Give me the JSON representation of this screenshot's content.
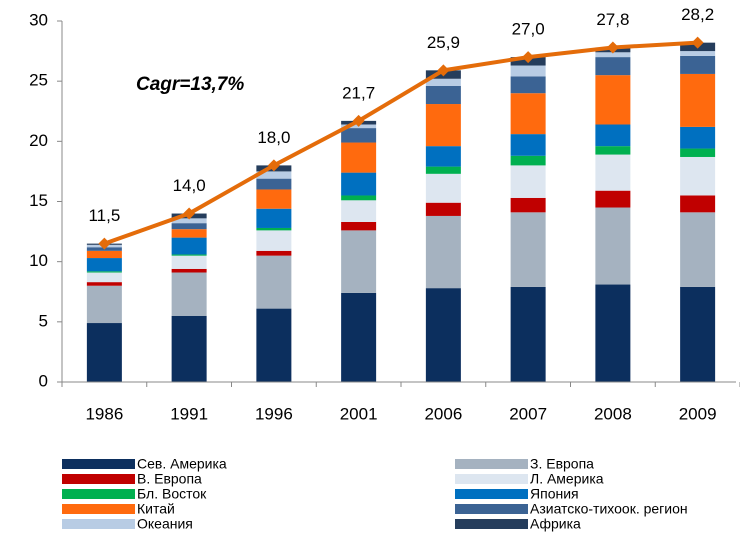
{
  "chart_data": {
    "type": "stacked_bar_line",
    "annotation": "Cagr=13,7%",
    "categories": [
      "1986",
      "1991",
      "1996",
      "2001",
      "2006",
      "2007",
      "2008",
      "2009"
    ],
    "series": [
      {
        "name": "Сев. Америка",
        "color": "#0c2f5e",
        "values": [
          4.9,
          5.5,
          6.1,
          7.4,
          7.8,
          7.9,
          8.1,
          7.9
        ]
      },
      {
        "name": "З. Европа",
        "color": "#a5b2c0",
        "values": [
          3.1,
          3.6,
          4.4,
          5.2,
          6.0,
          6.2,
          6.4,
          6.2
        ]
      },
      {
        "name": "В. Европа",
        "color": "#c00000",
        "values": [
          0.3,
          0.3,
          0.4,
          0.7,
          1.1,
          1.2,
          1.4,
          1.4
        ]
      },
      {
        "name": "Л. Америка",
        "color": "#dde6f0",
        "values": [
          0.8,
          1.1,
          1.7,
          1.8,
          2.4,
          2.7,
          3.0,
          3.2
        ]
      },
      {
        "name": "Бл. Восток",
        "color": "#00b050",
        "values": [
          0.1,
          0.1,
          0.2,
          0.4,
          0.6,
          0.8,
          0.7,
          0.7
        ]
      },
      {
        "name": "Япония",
        "color": "#0070c0",
        "values": [
          1.1,
          1.4,
          1.6,
          1.9,
          1.7,
          1.8,
          1.8,
          1.8
        ]
      },
      {
        "name": "Китай",
        "color": "#ff6a0e",
        "values": [
          0.6,
          0.7,
          1.6,
          2.5,
          3.5,
          3.4,
          4.1,
          4.4
        ]
      },
      {
        "name": "Азиатско-тихоок. регион",
        "color": "#3b6394",
        "values": [
          0.3,
          0.5,
          0.9,
          1.2,
          1.5,
          1.4,
          1.5,
          1.5
        ]
      },
      {
        "name": "Океания",
        "color": "#b8cce4",
        "values": [
          0.2,
          0.4,
          0.6,
          0.3,
          0.6,
          0.9,
          0.4,
          0.4
        ]
      },
      {
        "name": "Африка",
        "color": "#253d5c",
        "values": [
          0.1,
          0.4,
          0.5,
          0.3,
          0.7,
          0.7,
          0.4,
          0.7
        ]
      }
    ],
    "line": {
      "color": "#e46c0a",
      "values": [
        11.5,
        14.0,
        18.0,
        21.7,
        25.9,
        27.0,
        27.8,
        28.2
      ],
      "value_labels": [
        "11,5",
        "14,0",
        "18,0",
        "21,7",
        "25,9",
        "27,0",
        "27,8",
        "28,2"
      ]
    },
    "ylim": [
      0,
      30
    ],
    "yticks": [
      0,
      5,
      10,
      15,
      20,
      25,
      30
    ]
  }
}
